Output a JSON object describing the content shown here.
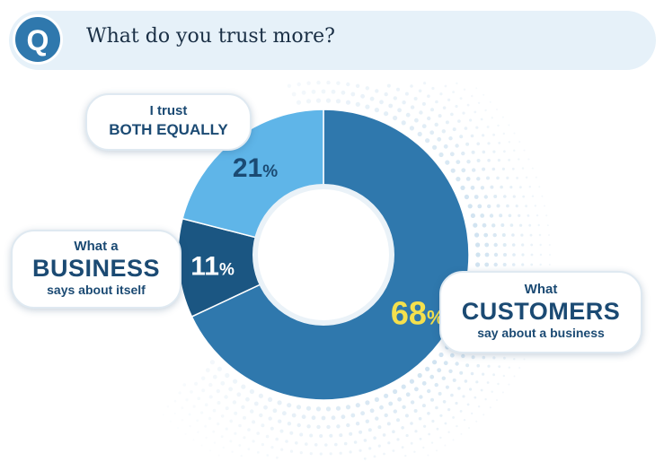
{
  "header": {
    "badge_letter": "Q",
    "question": "What do you trust more?"
  },
  "colors": {
    "customers": "#2f78ad",
    "business": "#1b5682",
    "both": "#5fb5e8",
    "highlight": "#f4e04d",
    "text_dark": "#1b4a73",
    "dots": "#cfe2f0"
  },
  "chart_data": {
    "type": "pie",
    "donut": true,
    "title": "What do you trust more?",
    "slices": [
      {
        "key": "customers",
        "value": 68,
        "label_pct": "68",
        "callout": [
          "What",
          "CUSTOMERS",
          "say about a business"
        ]
      },
      {
        "key": "business",
        "value": 11,
        "label_pct": "11",
        "callout": [
          "What a",
          "BUSINESS",
          "says about itself"
        ]
      },
      {
        "key": "both",
        "value": 21,
        "label_pct": "21",
        "callout": [
          "I trust",
          "BOTH EQUALLY"
        ]
      }
    ],
    "unit": "%"
  }
}
